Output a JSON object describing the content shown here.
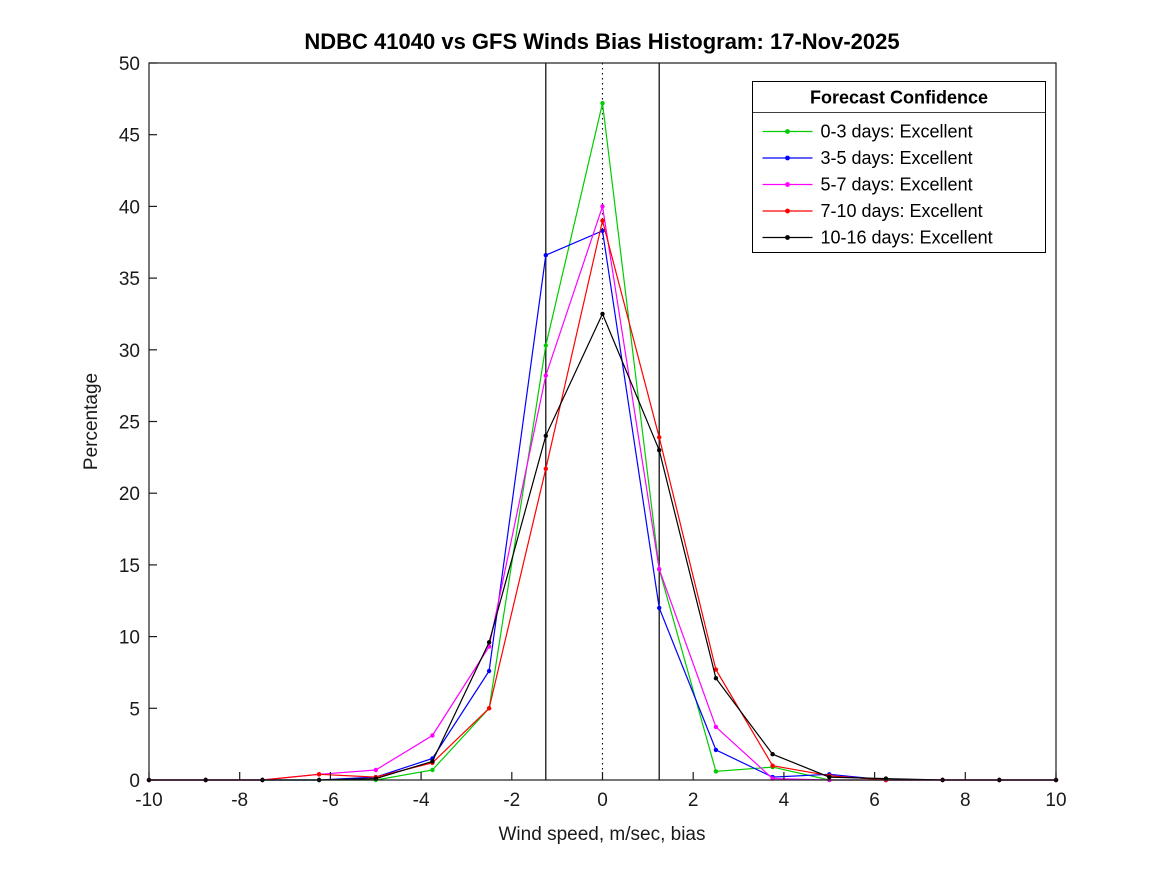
{
  "figure": {
    "background": "#ffffff",
    "axis_color": "#1a1a1a"
  },
  "chart_data": {
    "type": "line",
    "title": "NDBC 41040 vs GFS Winds Bias Histogram: 17-Nov-2025",
    "xlabel": "Wind speed, m/sec, bias",
    "ylabel": "Percentage",
    "xlim": [
      -10,
      10
    ],
    "ylim": [
      0,
      50
    ],
    "xticks": [
      -10,
      -8,
      -6,
      -4,
      -2,
      0,
      2,
      4,
      6,
      8,
      10
    ],
    "yticks": [
      0,
      5,
      10,
      15,
      20,
      25,
      30,
      35,
      40,
      45,
      50
    ],
    "grid": false,
    "x": [
      -10,
      -8.75,
      -7.5,
      -6.25,
      -5,
      -3.75,
      -2.5,
      -1.25,
      0,
      1.25,
      2.5,
      3.75,
      5,
      6.25,
      7.5,
      8.75,
      10
    ],
    "series": [
      {
        "name": "0-3 days: Excellent",
        "color": "#00cc00",
        "values": [
          0,
          0,
          0,
          0,
          0,
          0.7,
          5.0,
          30.3,
          47.2,
          14.7,
          0.6,
          0.9,
          0,
          0,
          0,
          0,
          0
        ]
      },
      {
        "name": "3-5 days: Excellent",
        "color": "#0000ff",
        "values": [
          0,
          0,
          0,
          0,
          0.2,
          1.5,
          7.6,
          36.6,
          38.3,
          12.0,
          2.1,
          0.2,
          0.4,
          0,
          0,
          0,
          0
        ]
      },
      {
        "name": "5-7 days: Excellent",
        "color": "#ff00ff",
        "values": [
          0,
          0,
          0,
          0.4,
          0.7,
          3.1,
          9.3,
          28.2,
          40.0,
          14.7,
          3.7,
          0.1,
          0,
          0,
          0,
          0,
          0
        ]
      },
      {
        "name": "7-10 days: Excellent",
        "color": "#ff0000",
        "values": [
          0,
          0,
          0,
          0.4,
          0.2,
          1.2,
          5.0,
          21.7,
          39.0,
          23.9,
          7.7,
          1.0,
          0.3,
          0,
          0,
          0,
          0
        ]
      },
      {
        "name": "10-16 days: Excellent",
        "color": "#000000",
        "values": [
          0,
          0,
          0,
          0,
          0.1,
          1.3,
          9.6,
          24.0,
          32.5,
          23.0,
          7.1,
          1.8,
          0.2,
          0.1,
          0,
          0,
          0
        ]
      }
    ],
    "reference_lines": {
      "solid_x": [
        -1.25,
        1.25
      ],
      "dotted_x": [
        0
      ]
    },
    "legend": {
      "title": "Forecast Confidence",
      "position": "top-right"
    }
  }
}
